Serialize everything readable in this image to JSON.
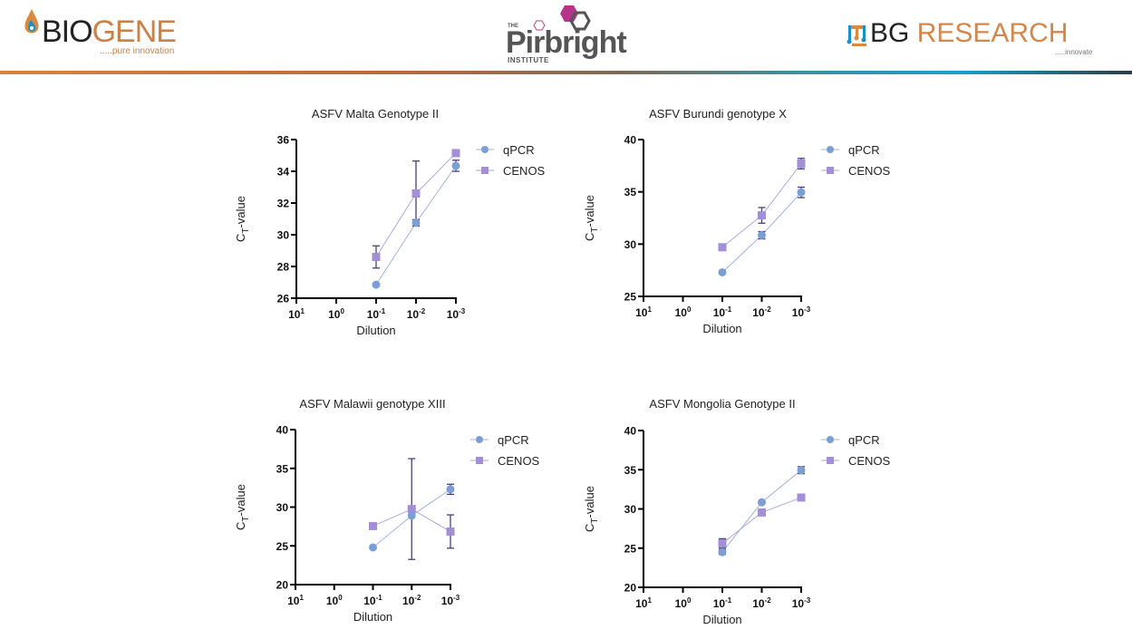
{
  "header": {
    "logos": [
      {
        "name": "BIOGENE",
        "part1": "BIO",
        "part2": "GENE",
        "tagline": ".....pure innovation"
      },
      {
        "name": "The Pirbright Institute",
        "the": "THE",
        "word": "Pirbright",
        "institute": "INSTITUTE"
      },
      {
        "name": "BG RESEARCH",
        "part1": "BG",
        "part2": " RESEARCH",
        "tagline": ".....innovate"
      }
    ]
  },
  "colors": {
    "qpcr": "#7b9fd4",
    "qpcr_line": "#9fb6e0",
    "cenos": "#a28fd6",
    "cenos_line": "#b3a6e0",
    "error_bar": "#4a3f7a",
    "axis": "#000000",
    "biogene_orange": "#c9814a",
    "pirbright_magenta": "#b5338a"
  },
  "chart_data": [
    {
      "type": "line",
      "title": "ASFV Malta Genotype II",
      "xlabel": "Dilution",
      "ylabel": "CT-value",
      "ylabel_main": "C",
      "ylabel_sub": "T",
      "ylabel_rest": "-value",
      "x_ticks": [
        "10",
        "10",
        "10",
        "10",
        "10"
      ],
      "x_tick_exps": [
        "1",
        "0",
        "-1",
        "-2",
        "-3"
      ],
      "ylim": [
        26,
        36
      ],
      "y_ticks": [
        26,
        28,
        30,
        32,
        34,
        36
      ],
      "legend": "right",
      "series": [
        {
          "name": "qPCR",
          "marker": "circle",
          "x_index": [
            2,
            3,
            4
          ],
          "values": [
            26.85,
            30.75,
            34.35
          ],
          "errors": [
            0,
            0.2,
            0.35
          ]
        },
        {
          "name": "CENOS",
          "marker": "square",
          "x_index": [
            2,
            3,
            4
          ],
          "values": [
            28.6,
            32.6,
            35.15
          ],
          "errors": [
            0.7,
            2.05,
            0
          ]
        }
      ]
    },
    {
      "type": "line",
      "title": "ASFV Burundi genotype X",
      "xlabel": "Dilution",
      "ylabel": "CT-value",
      "ylabel_main": "C",
      "ylabel_sub": "T",
      "ylabel_rest": "-value",
      "x_ticks": [
        "10",
        "10",
        "10",
        "10",
        "10"
      ],
      "x_tick_exps": [
        "1",
        "0",
        "-1",
        "-2",
        "-3"
      ],
      "ylim": [
        25,
        40
      ],
      "y_ticks": [
        25,
        30,
        35,
        40
      ],
      "legend": "right",
      "series": [
        {
          "name": "qPCR",
          "marker": "circle",
          "x_index": [
            2,
            3,
            4
          ],
          "values": [
            27.3,
            30.85,
            34.95
          ],
          "errors": [
            0,
            0.35,
            0.5
          ]
        },
        {
          "name": "CENOS",
          "marker": "square",
          "x_index": [
            2,
            3,
            4
          ],
          "values": [
            29.7,
            32.75,
            37.7
          ],
          "errors": [
            0,
            0.75,
            0.5
          ]
        }
      ]
    },
    {
      "type": "line",
      "title": "ASFV Malawii genotype XIII",
      "xlabel": "Dilution",
      "ylabel": "CT-value",
      "ylabel_main": "C",
      "ylabel_sub": "T",
      "ylabel_rest": "-value",
      "x_ticks": [
        "10",
        "10",
        "10",
        "10",
        "10"
      ],
      "x_tick_exps": [
        "1",
        "0",
        "-1",
        "-2",
        "-3"
      ],
      "ylim": [
        20,
        40
      ],
      "y_ticks": [
        20,
        25,
        30,
        35,
        40
      ],
      "legend": "right",
      "series": [
        {
          "name": "qPCR",
          "marker": "circle",
          "x_index": [
            2,
            3,
            4
          ],
          "values": [
            24.8,
            28.9,
            32.3
          ],
          "errors": [
            0,
            0,
            0.65
          ]
        },
        {
          "name": "CENOS",
          "marker": "square",
          "x_index": [
            2,
            3,
            4
          ],
          "values": [
            27.55,
            29.75,
            26.85
          ],
          "errors": [
            0,
            6.5,
            2.15
          ]
        }
      ]
    },
    {
      "type": "line",
      "title": "ASFV Mongolia Genotype II",
      "xlabel": "Dilution",
      "ylabel": "CT-value",
      "ylabel_main": "C",
      "ylabel_sub": "T",
      "ylabel_rest": "-value",
      "x_ticks": [
        "10",
        "10",
        "10",
        "10",
        "10"
      ],
      "x_tick_exps": [
        "1",
        "0",
        "-1",
        "-2",
        "-3"
      ],
      "ylim": [
        20,
        40
      ],
      "y_ticks": [
        20,
        25,
        30,
        35,
        40
      ],
      "legend": "right",
      "series": [
        {
          "name": "qPCR",
          "marker": "circle",
          "x_index": [
            2,
            3,
            4
          ],
          "values": [
            24.5,
            30.85,
            34.95
          ],
          "errors": [
            0.3,
            0,
            0.45
          ]
        },
        {
          "name": "CENOS",
          "marker": "square",
          "x_index": [
            2,
            3,
            4
          ],
          "values": [
            25.6,
            29.55,
            31.45
          ],
          "errors": [
            0.6,
            0,
            0
          ]
        }
      ]
    }
  ]
}
